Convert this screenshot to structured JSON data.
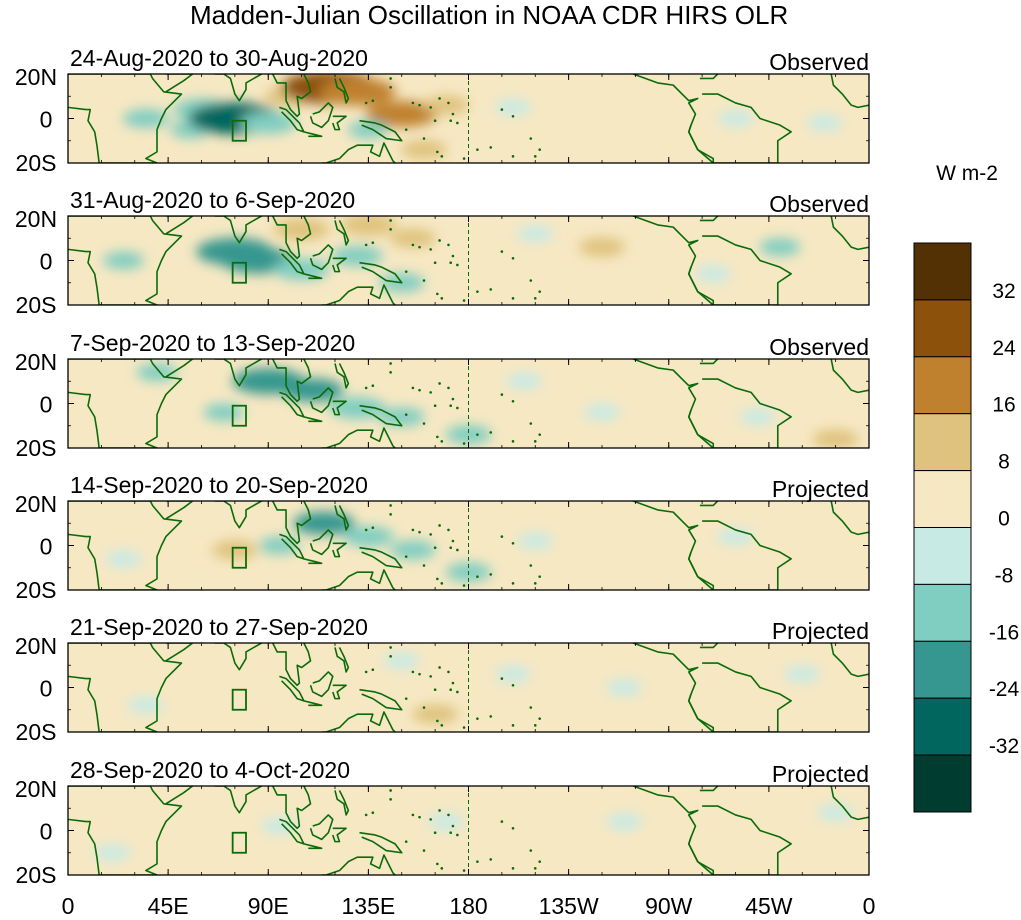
{
  "title": "Madden-Julian Oscillation in NOAA CDR HIRS OLR",
  "colorbar": {
    "units": "W m-2",
    "tick_labels": [
      "32",
      "24",
      "16",
      "8",
      "0",
      "-8",
      "-16",
      "-24",
      "-32"
    ],
    "levels": [
      40,
      32,
      24,
      16,
      8,
      0,
      -8,
      -16,
      -24,
      -32,
      -40
    ],
    "colors": [
      "#543005",
      "#8c510a",
      "#bf812d",
      "#dfc27d",
      "#f6e8c3",
      "#c7eae5",
      "#80cdc1",
      "#35978f",
      "#01665e",
      "#003c30"
    ]
  },
  "colors": {
    "coastline": "#0b6b0b",
    "frame": "#000000"
  },
  "chart_data": {
    "type": "heatmap",
    "title": "Madden-Julian Oscillation in NOAA CDR HIRS OLR",
    "xlabel": "",
    "ylabel": "",
    "x_tick_labels": [
      "0",
      "45E",
      "90E",
      "135E",
      "180",
      "135W",
      "90W",
      "45W",
      "0"
    ],
    "x_range_deg": [
      0,
      360
    ],
    "y_tick_labels": [
      "20N",
      "0",
      "20S"
    ],
    "y_range_deg": [
      -20,
      20
    ],
    "panels": [
      {
        "period": "24-Aug-2020 to 30-Aug-2020",
        "status": "Observed",
        "anomalies": [
          {
            "lon": 35,
            "lat": 0,
            "value": -10
          },
          {
            "lon": 60,
            "lat": 4,
            "value": -14
          },
          {
            "lon": 55,
            "lat": -5,
            "value": -8
          },
          {
            "lon": 75,
            "lat": 0,
            "value": -28
          },
          {
            "lon": 90,
            "lat": -2,
            "value": -14
          },
          {
            "lon": 100,
            "lat": 10,
            "value": 12
          },
          {
            "lon": 118,
            "lat": 14,
            "value": 30
          },
          {
            "lon": 130,
            "lat": 12,
            "value": 22
          },
          {
            "lon": 150,
            "lat": 2,
            "value": 20
          },
          {
            "lon": 170,
            "lat": 6,
            "value": 10
          },
          {
            "lon": 160,
            "lat": -14,
            "value": 10
          },
          {
            "lon": 200,
            "lat": 5,
            "value": -6
          },
          {
            "lon": 250,
            "lat": 3,
            "value": 6
          },
          {
            "lon": 300,
            "lat": 0,
            "value": -6
          },
          {
            "lon": 340,
            "lat": -2,
            "value": -6
          },
          {
            "lon": 135,
            "lat": -5,
            "value": -8
          }
        ]
      },
      {
        "period": "31-Aug-2020 to 6-Sep-2020",
        "status": "Observed",
        "anomalies": [
          {
            "lon": 25,
            "lat": 0,
            "value": -8
          },
          {
            "lon": 75,
            "lat": 4,
            "value": -22
          },
          {
            "lon": 85,
            "lat": 0,
            "value": -20
          },
          {
            "lon": 105,
            "lat": -4,
            "value": -14
          },
          {
            "lon": 130,
            "lat": 2,
            "value": -12
          },
          {
            "lon": 150,
            "lat": -10,
            "value": -10
          },
          {
            "lon": 105,
            "lat": 14,
            "value": 14
          },
          {
            "lon": 135,
            "lat": 16,
            "value": 14
          },
          {
            "lon": 155,
            "lat": 10,
            "value": 10
          },
          {
            "lon": 240,
            "lat": 6,
            "value": 10
          },
          {
            "lon": 210,
            "lat": 12,
            "value": -6
          },
          {
            "lon": 320,
            "lat": 6,
            "value": -8
          },
          {
            "lon": 290,
            "lat": -6,
            "value": -6
          },
          {
            "lon": 185,
            "lat": -8,
            "value": 5
          }
        ]
      },
      {
        "period": "7-Sep-2020 to 13-Sep-2020",
        "status": "Observed",
        "anomalies": [
          {
            "lon": 90,
            "lat": 10,
            "value": -20
          },
          {
            "lon": 110,
            "lat": 6,
            "value": -16
          },
          {
            "lon": 130,
            "lat": -2,
            "value": -14
          },
          {
            "lon": 150,
            "lat": -6,
            "value": -10
          },
          {
            "lon": 70,
            "lat": -4,
            "value": -8
          },
          {
            "lon": 40,
            "lat": 14,
            "value": -8
          },
          {
            "lon": 180,
            "lat": -14,
            "value": -10
          },
          {
            "lon": 160,
            "lat": 12,
            "value": 6
          },
          {
            "lon": 25,
            "lat": -4,
            "value": 6
          },
          {
            "lon": 270,
            "lat": 4,
            "value": 6
          },
          {
            "lon": 240,
            "lat": -4,
            "value": -6
          },
          {
            "lon": 310,
            "lat": -6,
            "value": -6
          },
          {
            "lon": 345,
            "lat": -16,
            "value": 10
          },
          {
            "lon": 205,
            "lat": 10,
            "value": -6
          }
        ]
      },
      {
        "period": "14-Sep-2020 to 20-Sep-2020",
        "status": "Projected",
        "anomalies": [
          {
            "lon": 115,
            "lat": 10,
            "value": -16
          },
          {
            "lon": 135,
            "lat": 4,
            "value": -12
          },
          {
            "lon": 155,
            "lat": -2,
            "value": -10
          },
          {
            "lon": 180,
            "lat": -12,
            "value": -10
          },
          {
            "lon": 95,
            "lat": 0,
            "value": -8
          },
          {
            "lon": 75,
            "lat": -2,
            "value": 10
          },
          {
            "lon": 40,
            "lat": 4,
            "value": 6
          },
          {
            "lon": 25,
            "lat": -6,
            "value": -6
          },
          {
            "lon": 210,
            "lat": 2,
            "value": -6
          },
          {
            "lon": 250,
            "lat": 6,
            "value": 6
          },
          {
            "lon": 300,
            "lat": 4,
            "value": -6
          },
          {
            "lon": 340,
            "lat": -6,
            "value": 6
          },
          {
            "lon": 190,
            "lat": 12,
            "value": 5
          }
        ]
      },
      {
        "period": "21-Sep-2020 to 27-Sep-2020",
        "status": "Projected",
        "anomalies": [
          {
            "lon": 60,
            "lat": 4,
            "value": 8
          },
          {
            "lon": 90,
            "lat": 8,
            "value": 6
          },
          {
            "lon": 140,
            "lat": -8,
            "value": 8
          },
          {
            "lon": 165,
            "lat": -12,
            "value": 10
          },
          {
            "lon": 150,
            "lat": 12,
            "value": -6
          },
          {
            "lon": 200,
            "lat": 6,
            "value": -6
          },
          {
            "lon": 35,
            "lat": -8,
            "value": -6
          },
          {
            "lon": 250,
            "lat": 0,
            "value": -6
          },
          {
            "lon": 300,
            "lat": -4,
            "value": 6
          },
          {
            "lon": 330,
            "lat": 6,
            "value": -6
          },
          {
            "lon": 20,
            "lat": 10,
            "value": 6
          }
        ]
      },
      {
        "period": "28-Sep-2020 to 4-Oct-2020",
        "status": "Projected",
        "anomalies": [
          {
            "lon": 40,
            "lat": 6,
            "value": 6
          },
          {
            "lon": 75,
            "lat": -6,
            "value": 6
          },
          {
            "lon": 95,
            "lat": 2,
            "value": -6
          },
          {
            "lon": 130,
            "lat": 10,
            "value": 6
          },
          {
            "lon": 170,
            "lat": 4,
            "value": -6
          },
          {
            "lon": 210,
            "lat": -8,
            "value": 6
          },
          {
            "lon": 250,
            "lat": 4,
            "value": -6
          },
          {
            "lon": 310,
            "lat": -4,
            "value": 6
          },
          {
            "lon": 345,
            "lat": 8,
            "value": -6
          },
          {
            "lon": 20,
            "lat": -10,
            "value": -6
          }
        ]
      }
    ]
  }
}
